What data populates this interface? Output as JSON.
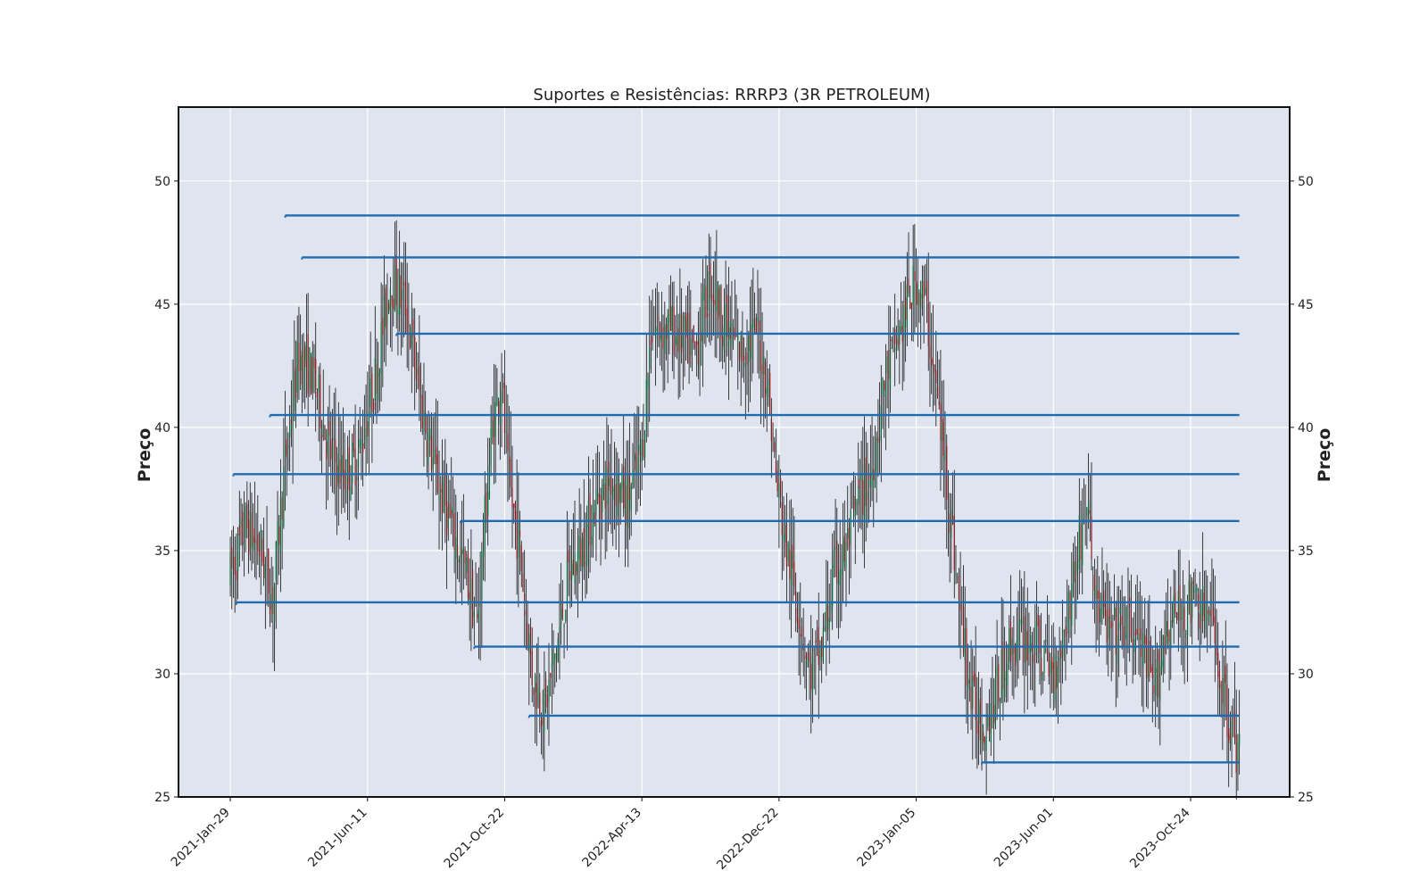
{
  "chart_data": {
    "type": "candlestick",
    "title": "Suportes e Resistências: RRRP3 (3R PETROLEUM)",
    "ylabel_left": "Preço",
    "ylabel_right": "Preço",
    "xlabel": "",
    "ylim": [
      25,
      53
    ],
    "y_ticks": [
      25,
      30,
      35,
      40,
      45,
      50
    ],
    "x_ticks": [
      {
        "index": 0,
        "label": "2021-Jan-29"
      },
      {
        "index": 90,
        "label": "2021-Jun-11"
      },
      {
        "index": 180,
        "label": "2021-Oct-22"
      },
      {
        "index": 270,
        "label": "2022-Apr-13"
      },
      {
        "index": 360,
        "label": "2022-Dec-22"
      },
      {
        "index": 450,
        "label": "2023-Jan-05"
      },
      {
        "index": 540,
        "label": "2023-Jun-01"
      },
      {
        "index": 630,
        "label": "2023-Oct-24"
      }
    ],
    "x_range": [
      -34,
      695
    ],
    "last_index": 662,
    "grid": true,
    "candle_colors": {
      "up": "#0b6b37",
      "down": "#8b1a1a"
    },
    "levels_color": "#1f6bb0",
    "levels": [
      {
        "price": 48.6,
        "start_index": 36
      },
      {
        "price": 46.9,
        "start_index": 47
      },
      {
        "price": 43.8,
        "start_index": 109
      },
      {
        "price": 40.5,
        "start_index": 26
      },
      {
        "price": 38.1,
        "start_index": 2
      },
      {
        "price": 36.2,
        "start_index": 151
      },
      {
        "price": 32.9,
        "start_index": 4
      },
      {
        "price": 31.1,
        "start_index": 160
      },
      {
        "price": 28.3,
        "start_index": 196
      },
      {
        "price": 26.4,
        "start_index": 493
      }
    ],
    "price_path": [
      [
        0,
        34
      ],
      [
        10,
        36
      ],
      [
        20,
        35
      ],
      [
        28,
        33
      ],
      [
        35,
        38
      ],
      [
        45,
        43
      ],
      [
        55,
        42
      ],
      [
        65,
        39
      ],
      [
        75,
        38
      ],
      [
        85,
        39
      ],
      [
        95,
        42
      ],
      [
        105,
        46
      ],
      [
        115,
        45
      ],
      [
        125,
        41
      ],
      [
        135,
        38
      ],
      [
        145,
        36
      ],
      [
        155,
        34
      ],
      [
        162,
        32
      ],
      [
        168,
        37
      ],
      [
        172,
        40
      ],
      [
        178,
        42
      ],
      [
        182,
        38
      ],
      [
        190,
        35
      ],
      [
        198,
        30
      ],
      [
        206,
        28.5
      ],
      [
        214,
        31
      ],
      [
        222,
        34
      ],
      [
        230,
        35
      ],
      [
        240,
        37
      ],
      [
        250,
        38
      ],
      [
        260,
        37
      ],
      [
        270,
        39
      ],
      [
        276,
        44
      ],
      [
        290,
        44
      ],
      [
        305,
        43
      ],
      [
        315,
        46
      ],
      [
        325,
        44
      ],
      [
        335,
        43
      ],
      [
        345,
        44
      ],
      [
        352,
        42
      ],
      [
        358,
        38
      ],
      [
        365,
        35
      ],
      [
        372,
        33
      ],
      [
        380,
        30
      ],
      [
        388,
        31
      ],
      [
        396,
        34
      ],
      [
        404,
        35
      ],
      [
        412,
        37
      ],
      [
        420,
        38
      ],
      [
        430,
        42
      ],
      [
        440,
        44
      ],
      [
        450,
        46
      ],
      [
        456,
        45
      ],
      [
        462,
        42
      ],
      [
        470,
        38
      ],
      [
        478,
        33
      ],
      [
        486,
        29
      ],
      [
        494,
        28
      ],
      [
        502,
        29
      ],
      [
        510,
        31
      ],
      [
        520,
        31.5
      ],
      [
        530,
        31
      ],
      [
        540,
        30
      ],
      [
        548,
        32
      ],
      [
        556,
        35
      ],
      [
        562,
        37
      ],
      [
        568,
        33
      ],
      [
        578,
        31.5
      ],
      [
        590,
        32
      ],
      [
        598,
        31
      ],
      [
        606,
        29
      ],
      [
        614,
        32
      ],
      [
        624,
        32.5
      ],
      [
        634,
        33
      ],
      [
        644,
        32
      ],
      [
        652,
        29
      ],
      [
        662,
        26.6
      ]
    ]
  }
}
